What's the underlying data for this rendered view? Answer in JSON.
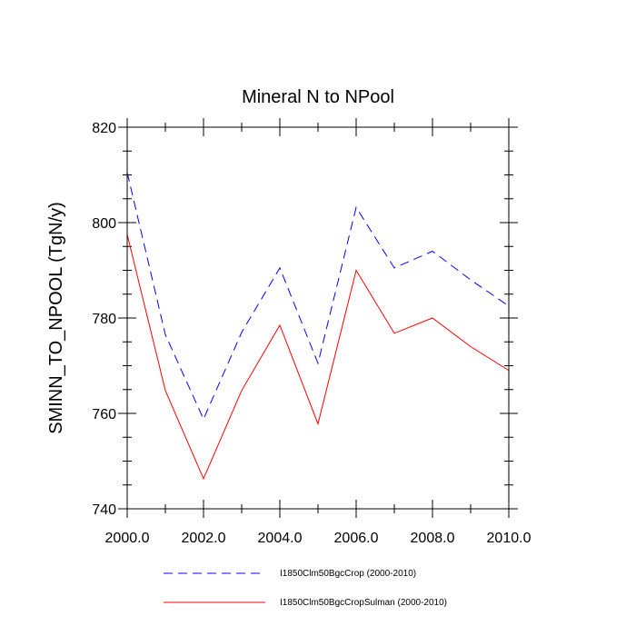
{
  "chart_data": {
    "type": "line",
    "title": "Mineral N to NPool",
    "xlabel": "",
    "ylabel": "SMINN_TO_NPOOL  (TgN/y)",
    "xlim": [
      2000,
      2010
    ],
    "ylim": [
      740,
      820
    ],
    "x_ticks": [
      "2000.0",
      "2002.0",
      "2004.0",
      "2006.0",
      "2008.0",
      "2010.0"
    ],
    "x_tick_values": [
      2000,
      2002,
      2004,
      2006,
      2008,
      2010
    ],
    "y_ticks": [
      "740",
      "760",
      "780",
      "800",
      "820"
    ],
    "y_tick_values": [
      740,
      760,
      780,
      800,
      820
    ],
    "grid": false,
    "legend_position": "bottom",
    "x": [
      2000,
      2001,
      2002,
      2003,
      2004,
      2005,
      2006,
      2007,
      2008,
      2009,
      2010
    ],
    "series": [
      {
        "name": "I1850Clm50BgcCrop (2000-2010)",
        "color": "#0000ff",
        "dash": "dashed",
        "values": [
          810.5,
          776.5,
          758.8,
          777.0,
          790.5,
          770.5,
          803.2,
          790.5,
          794.0,
          788.0,
          782.5
        ]
      },
      {
        "name": "I1850Clm50BgcCropSulman (2000-2010)",
        "color": "#ff0000",
        "dash": "solid",
        "values": [
          797.5,
          764.8,
          746.3,
          764.8,
          778.5,
          757.8,
          790.0,
          776.8,
          780.0,
          774.0,
          769.0
        ]
      }
    ]
  }
}
